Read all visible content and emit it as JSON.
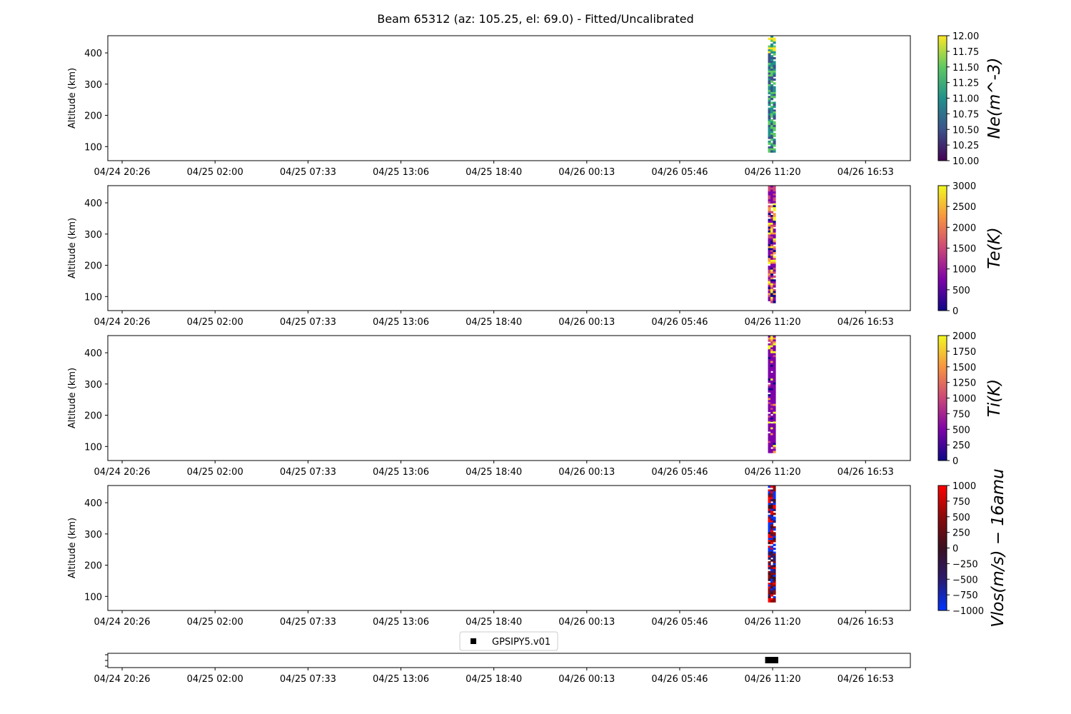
{
  "title": "Beam 65312 (az: 105.25, el: 69.0) - Fitted/Uncalibrated",
  "time_tick_labels": [
    "04/24 20:26",
    "04/25 02:00",
    "04/25 07:33",
    "04/25 13:06",
    "04/25 18:40",
    "04/26 00:13",
    "04/26 05:46",
    "04/26 11:20",
    "04/26 16:53"
  ],
  "chart_data": [
    {
      "type": "heatmap",
      "name": "Ne",
      "ylabel": "Altitude (km)",
      "yticks": [
        100,
        200,
        300,
        400
      ],
      "ylim": [
        55,
        455
      ],
      "xlim_hours": [
        -1.54,
        84.82
      ],
      "xtick_hours": [
        0,
        10,
        20,
        30,
        40,
        50,
        60,
        70,
        80
      ],
      "data_window_hours": [
        69.5,
        70.3
      ],
      "altitude_range_km": [
        82,
        455
      ],
      "colormap": "viridis",
      "colorbar_label": "Ne(m^-3)",
      "colorbar_range": [
        10.0,
        12.0
      ],
      "colorbar_ticks": [
        "10.00",
        "10.25",
        "10.50",
        "10.75",
        "11.00",
        "11.25",
        "11.50",
        "11.75",
        "12.00"
      ],
      "colors": [
        "#440154",
        "#3b528b",
        "#21918c",
        "#5ec962",
        "#fde725"
      ]
    },
    {
      "type": "heatmap",
      "name": "Te",
      "ylabel": "Altitude (km)",
      "yticks": [
        100,
        200,
        300,
        400
      ],
      "ylim": [
        55,
        455
      ],
      "xlim_hours": [
        -1.54,
        84.82
      ],
      "xtick_hours": [
        0,
        10,
        20,
        30,
        40,
        50,
        60,
        70,
        80
      ],
      "data_window_hours": [
        69.5,
        70.3
      ],
      "altitude_range_km": [
        80,
        455
      ],
      "colormap": "plasma",
      "colorbar_label": "Te(K)",
      "colorbar_range": [
        0,
        3000
      ],
      "colorbar_ticks": [
        "0",
        "500",
        "1000",
        "1500",
        "2000",
        "2500",
        "3000"
      ],
      "colors": [
        "#0d0887",
        "#7e03a8",
        "#cc4778",
        "#f89540",
        "#f0f921"
      ]
    },
    {
      "type": "heatmap",
      "name": "Ti",
      "ylabel": "Altitude (km)",
      "yticks": [
        100,
        200,
        300,
        400
      ],
      "ylim": [
        55,
        455
      ],
      "xlim_hours": [
        -1.54,
        84.82
      ],
      "xtick_hours": [
        0,
        10,
        20,
        30,
        40,
        50,
        60,
        70,
        80
      ],
      "data_window_hours": [
        69.5,
        70.3
      ],
      "altitude_range_km": [
        80,
        455
      ],
      "colormap": "plasma",
      "colorbar_label": "Ti(K)",
      "colorbar_range": [
        0,
        2000
      ],
      "colorbar_ticks": [
        "0",
        "250",
        "500",
        "750",
        "1000",
        "1250",
        "1500",
        "1750",
        "2000"
      ],
      "colors": [
        "#0d0887",
        "#7e03a8",
        "#cc4778",
        "#f89540",
        "#f0f921"
      ]
    },
    {
      "type": "heatmap",
      "name": "Vlos",
      "ylabel": "Altitude (km)",
      "yticks": [
        100,
        200,
        300,
        400
      ],
      "ylim": [
        55,
        455
      ],
      "xlim_hours": [
        -1.54,
        84.82
      ],
      "xtick_hours": [
        0,
        10,
        20,
        30,
        40,
        50,
        60,
        70,
        80
      ],
      "data_window_hours": [
        69.5,
        70.3
      ],
      "altitude_range_km": [
        82,
        455
      ],
      "colormap": "blue-dark-red diverging",
      "colorbar_label": "Vlos(m/s) − 16amu",
      "colorbar_range": [
        -1000,
        1000
      ],
      "colorbar_ticks": [
        "−1000",
        "−750",
        "−500",
        "−250",
        "0",
        "250",
        "500",
        "750",
        "1000"
      ],
      "colors": [
        "#0033ff",
        "#2a1a6e",
        "#3a1020",
        "#8b0a0a",
        "#ff0000"
      ]
    },
    {
      "type": "scatter",
      "name": "GPSIPY5.v01",
      "legend": [
        "GPSIPY5.v01"
      ],
      "legend_position": "top-center",
      "marker": "square",
      "color": "#000000",
      "x_hours": [
        69.5,
        69.6,
        69.7,
        69.8,
        69.9,
        70.0,
        70.1,
        70.2,
        70.3
      ],
      "xlim_hours": [
        -1.54,
        84.82
      ],
      "xtick_hours": [
        0,
        10,
        20,
        30,
        40,
        50,
        60,
        70,
        80
      ]
    }
  ]
}
